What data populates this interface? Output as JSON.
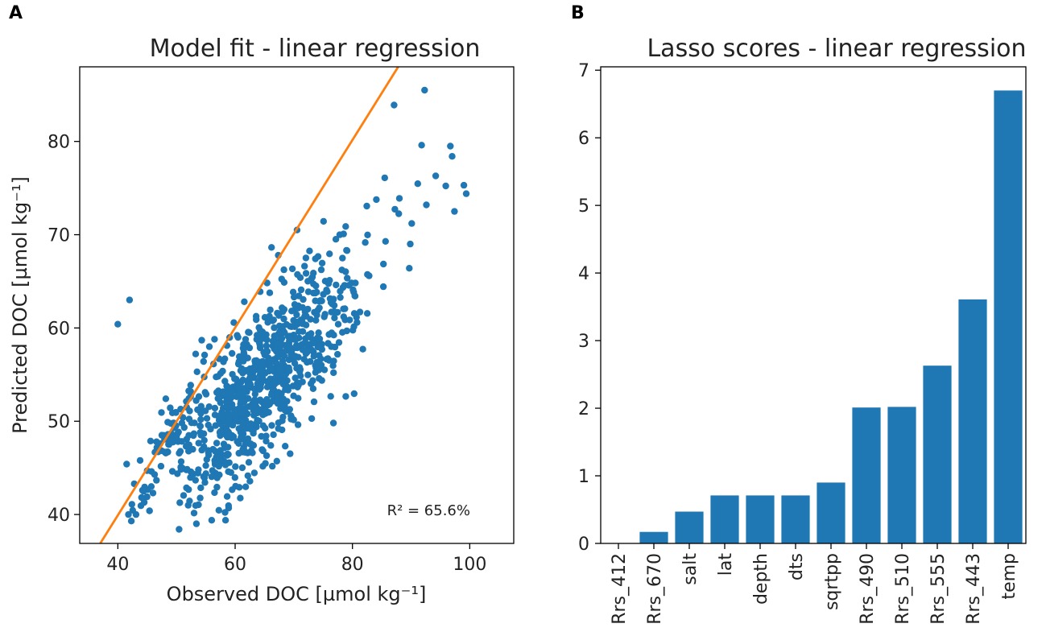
{
  "panels": {
    "a_label": "A",
    "b_label": "B"
  },
  "colors": {
    "points": "#1f77b4",
    "bars": "#1f77b4",
    "fit_line": "#ff7f0e"
  },
  "chart_data": [
    {
      "type": "scatter",
      "title": "Model fit - linear regression",
      "xlabel": "Observed DOC [µmol kg⁻¹]",
      "ylabel": "Predicted DOC [µmol kg⁻¹]",
      "xlim": [
        33.5,
        107.5
      ],
      "ylim": [
        36.9,
        88.0
      ],
      "xticks": [
        40,
        60,
        80,
        100
      ],
      "yticks": [
        40,
        50,
        60,
        70,
        80
      ],
      "annotation": "R² = 65.6%",
      "fit_line": {
        "x": [
          37.0,
          87.8
        ],
        "y": [
          36.9,
          88.0
        ]
      },
      "series": [
        {
          "name": "observations",
          "generator": "seeded",
          "n_cloud": 900,
          "seed": 7,
          "x": [
            40.0,
            42.0,
            92.3,
            87.1,
            89.7,
            96.7,
            99.4,
            97.4,
            91.8,
            88.0,
            85.5,
            94.2,
            92.6,
            90.1,
            99.0,
            97.0,
            45.4,
            46.0,
            57.4,
            59.3,
            58.0,
            42.3,
            43.1,
            44.5,
            42.8,
            45.0,
            41.5,
            43.8,
            47.2,
            48.5,
            46.6,
            49.3,
            50.7,
            52.4,
            51.1,
            48.0,
            47.5,
            44.2,
            45.7,
            50.0,
            53.5,
            54.8,
            55.6,
            76.0,
            78.5,
            80.1
          ],
          "y": [
            60.4,
            63.0,
            85.5,
            83.9,
            66.4,
            79.5,
            74.4,
            72.5,
            79.6,
            73.9,
            76.1,
            76.3,
            73.2,
            71.2,
            75.3,
            78.4,
            40.4,
            42.3,
            52.6,
            52.5,
            53.0,
            39.3,
            40.0,
            41.3,
            43.3,
            44.7,
            45.4,
            45.8,
            47.6,
            49.9,
            47.8,
            50.9,
            51.3,
            53.2,
            50.4,
            46.7,
            48.5,
            42.6,
            43.0,
            48.3,
            55.3,
            57.1,
            58.0,
            59.3,
            61.2,
            64.1
          ]
        }
      ]
    },
    {
      "type": "bar",
      "title": "Lasso scores - linear regression",
      "categories": [
        "Rrs_412",
        "Rrs_670",
        "salt",
        "lat",
        "depth",
        "dts",
        "sqrtpp",
        "Rrs_490",
        "Rrs_510",
        "Rrs_555",
        "Rrs_443",
        "temp"
      ],
      "values": [
        0.0,
        0.17,
        0.47,
        0.71,
        0.71,
        0.71,
        0.9,
        2.01,
        2.02,
        2.63,
        3.61,
        6.7
      ],
      "ylim": [
        0,
        7.05
      ],
      "yticks": [
        0,
        1,
        2,
        3,
        4,
        5,
        6,
        7
      ]
    }
  ]
}
